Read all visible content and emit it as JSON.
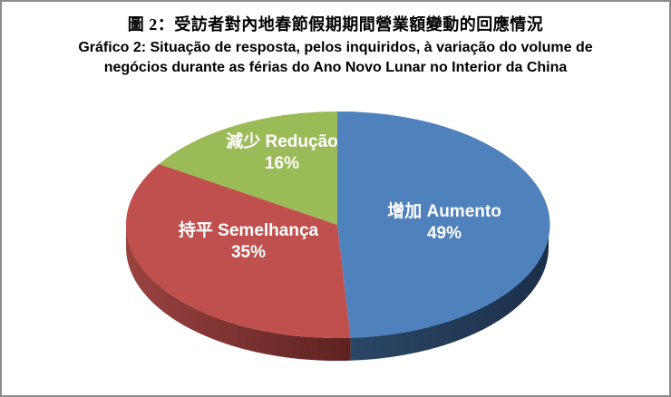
{
  "chart_data": {
    "type": "pie",
    "effect_3d": true,
    "start_angle_deg": 0,
    "direction": "clockwise",
    "title_zh": "圖 2：受訪者對內地春節假期期間營業額變動的回應情況",
    "title_pt": "Gráfico 2: Situação de resposta, pelos inquiridos, à variação do volume de negócios durante as férias do Ano Novo Lunar no Interior da China",
    "label_text_color": "#FFFFFF",
    "background_color": "#FFFFFF",
    "border_color": "#8C8C8C",
    "slices": [
      {
        "name_zh": "增加",
        "name_pt": "Aumento",
        "pct": 49,
        "pct_label": "49%",
        "color": "#4F81BD",
        "side_colors": [
          "#2B4766",
          "#1C2F49"
        ]
      },
      {
        "name_zh": "持平",
        "name_pt": "Semelhança",
        "pct": 35,
        "pct_label": "35%",
        "color": "#C0504D",
        "side_colors": [
          "#9A4341",
          "#5C2220"
        ]
      },
      {
        "name_zh": "減少",
        "name_pt": "Redução",
        "pct": 16,
        "pct_label": "16%",
        "color": "#9BBB59",
        "side_colors": null
      }
    ]
  }
}
